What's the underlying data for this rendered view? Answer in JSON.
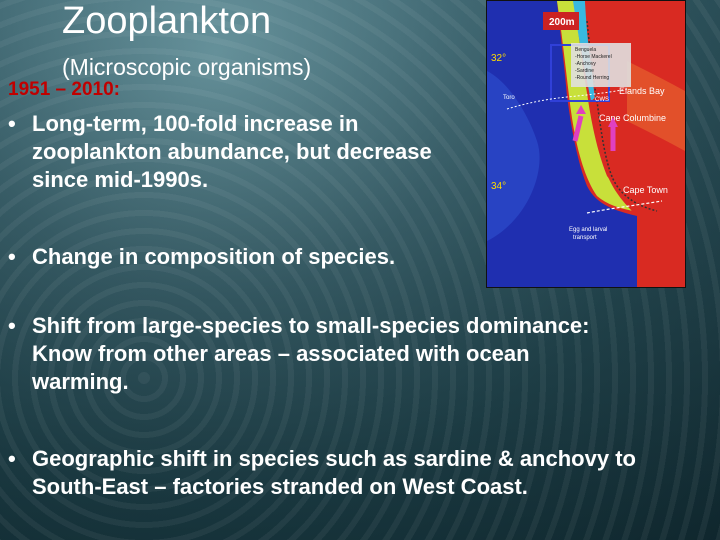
{
  "slide": {
    "title": "Zooplankton",
    "subtitle": "(Microscopic organisms)",
    "years": "1951 – 2010:",
    "bullets": [
      "Long-term, 100-fold increase in zooplankton abundance, but decrease since mid-1990s.",
      "Change in composition of species.",
      "Shift from large-species to small-species dominance: Know from other areas – associated with ocean warming.",
      "Geographic shift in species such as sardine & anchovy to South-East – factories stranded on West Coast."
    ]
  },
  "map": {
    "depth_label": "200m",
    "lat_32": "32°",
    "lat_34": "34°",
    "legend_items": [
      "Benguela",
      "-Horse Mackerel",
      "-Anchovy",
      "-Sardine",
      "-Round Herring"
    ],
    "places": {
      "elands_bay": "Elands Bay",
      "cape_columbine": "Cape Columbine",
      "cape_town": "Cape Town",
      "cws": "CWS",
      "toro": "Toro"
    },
    "transport_label": [
      "Egg and larval",
      "transport"
    ],
    "colors": {
      "land": "#d92a22",
      "shelf": "#c8e03a",
      "offshore": "#1f2fb0",
      "arrow": "#e040c0",
      "box": "#3040d8"
    }
  }
}
